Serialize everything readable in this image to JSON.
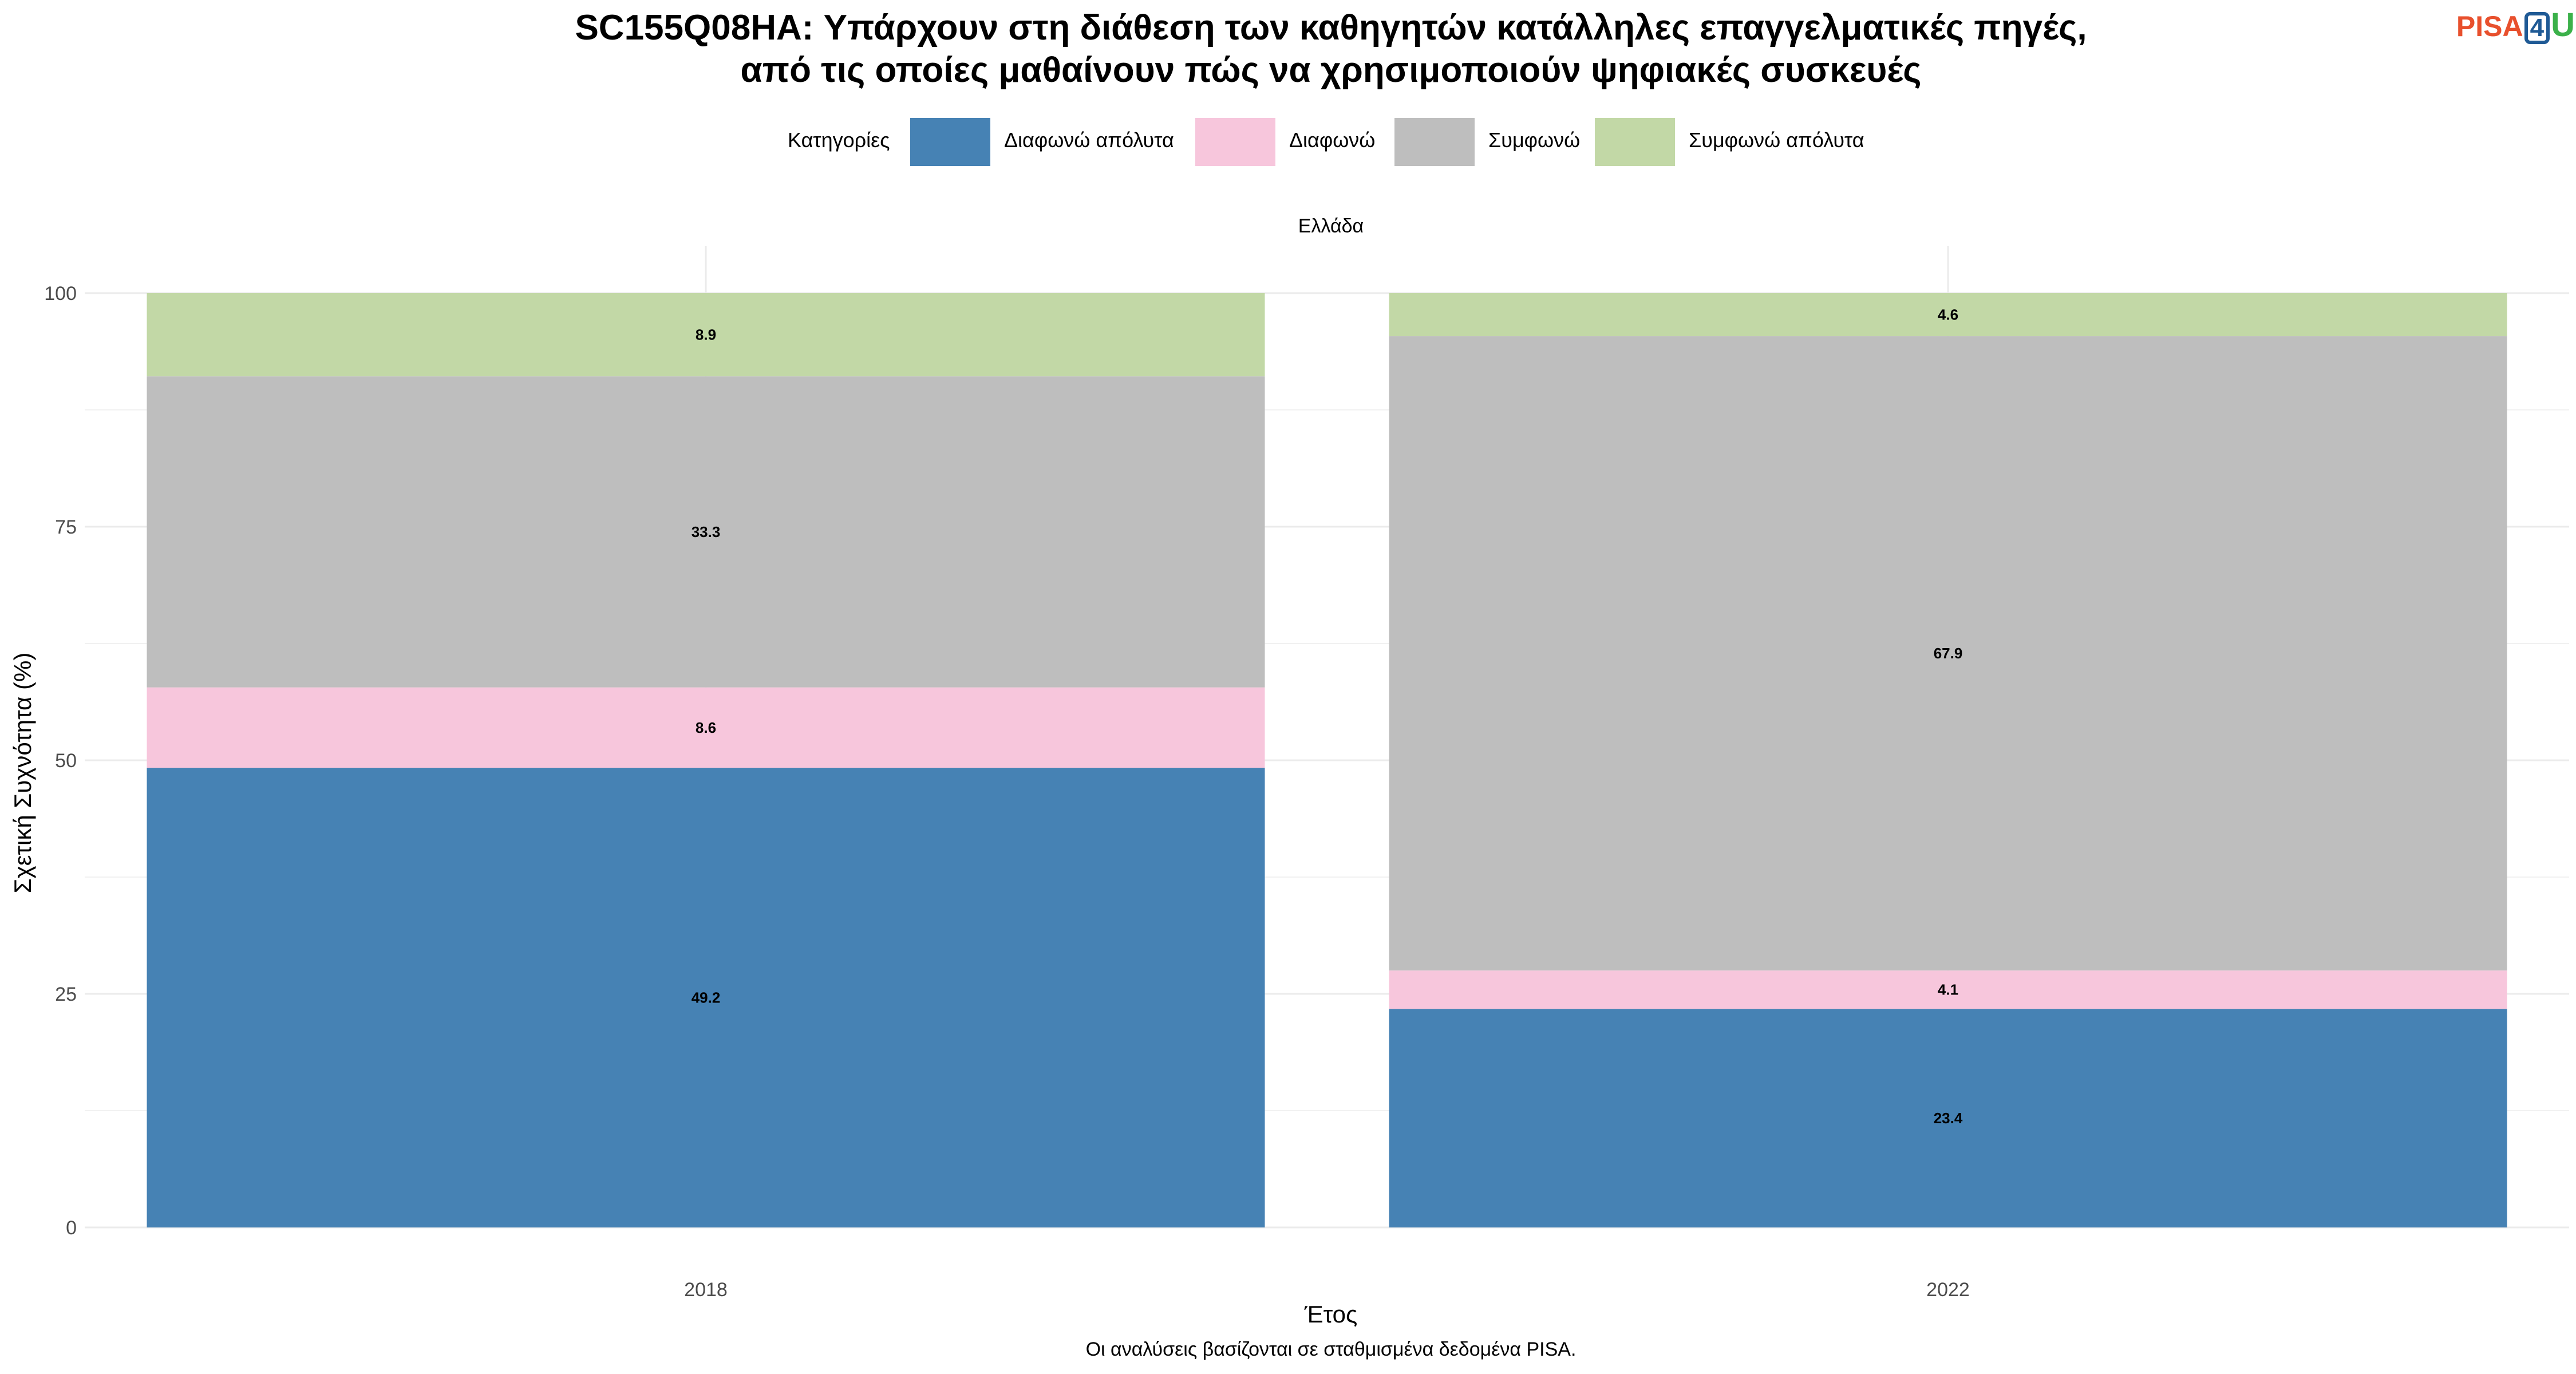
{
  "title": {
    "line1": "SC155Q08HA: Υπάρχουν στη διάθεση των καθηγητών κατάλληλες επαγγελματικές πηγές,",
    "line2": "από τις οποίες μαθαίνουν πώς να χρησιμοποιούν ψηφιακές συσκευές"
  },
  "logo": {
    "part1": "PISA",
    "part2": "4",
    "part3": "U"
  },
  "legend": {
    "title": "Κατηγορίες",
    "items": [
      {
        "label": "Διαφωνώ απόλυτα",
        "color": "#4682B4"
      },
      {
        "label": "Διαφωνώ",
        "color": "#F7C6DC"
      },
      {
        "label": "Συμφωνώ",
        "color": "#BEBEBE"
      },
      {
        "label": "Συμφωνώ απόλυτα",
        "color": "#C2D8A6"
      }
    ]
  },
  "facet_label": "Ελλάδα",
  "caption": "Οι αναλύσεις βασίζονται σε σταθμισμένα δεδομένα PISA.",
  "chart_data": {
    "type": "bar",
    "stacked": true,
    "categories": [
      "2018",
      "2022"
    ],
    "series": [
      {
        "name": "Διαφωνώ απόλυτα",
        "values": [
          49.2,
          23.4
        ],
        "labels": [
          "49.2",
          "23.4"
        ],
        "color": "#4682B4"
      },
      {
        "name": "Διαφωνώ",
        "values": [
          8.6,
          4.1
        ],
        "labels": [
          "8.6",
          "4.1"
        ],
        "color": "#F7C6DC"
      },
      {
        "name": "Συμφωνώ",
        "values": [
          33.3,
          67.9
        ],
        "labels": [
          "33.3",
          "67.9"
        ],
        "color": "#BEBEBE"
      },
      {
        "name": "Συμφωνώ απόλυτα",
        "values": [
          8.9,
          4.6
        ],
        "labels": [
          "8.9",
          "4.6"
        ],
        "color": "#C2D8A6"
      }
    ],
    "xlabel": "Έτος",
    "ylabel": "Σχετική Συχνότητα (%)",
    "ylim": [
      0,
      100
    ],
    "yticks": [
      0,
      25,
      50,
      75,
      100
    ],
    "ytick_labels": [
      "0",
      "25",
      "50",
      "75",
      "100"
    ],
    "grid": true,
    "legend_position": "top"
  }
}
